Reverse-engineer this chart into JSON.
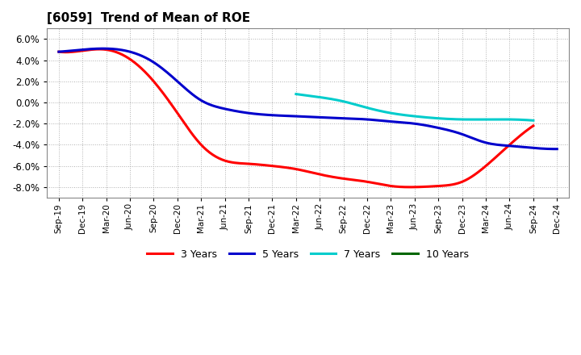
{
  "title": "[6059]  Trend of Mean of ROE",
  "background_color": "#ffffff",
  "plot_bg_color": "#ffffff",
  "grid_color": "#b0b0b0",
  "ylim": [
    -0.09,
    0.07
  ],
  "yticks": [
    -0.08,
    -0.06,
    -0.04,
    -0.02,
    0.0,
    0.02,
    0.04,
    0.06
  ],
  "series": {
    "3yr": {
      "color": "#ff0000",
      "label": "3 Years",
      "x_indices": [
        0,
        1,
        2,
        3,
        4,
        5,
        6,
        7,
        8,
        9,
        10,
        11,
        12,
        13,
        14,
        15,
        16,
        17,
        18,
        19,
        20
      ],
      "values": [
        0.048,
        0.049,
        0.05,
        0.041,
        0.02,
        -0.01,
        -0.04,
        -0.055,
        -0.058,
        -0.06,
        -0.063,
        -0.068,
        -0.072,
        -0.075,
        -0.079,
        -0.08,
        -0.079,
        -0.075,
        -0.06,
        -0.04,
        -0.022
      ]
    },
    "5yr": {
      "color": "#0000cc",
      "label": "5 Years",
      "x_indices": [
        0,
        1,
        2,
        3,
        4,
        5,
        6,
        7,
        8,
        9,
        10,
        11,
        12,
        13,
        14,
        15,
        16,
        17,
        18,
        19,
        20,
        21
      ],
      "values": [
        0.048,
        0.05,
        0.051,
        0.048,
        0.038,
        0.02,
        0.002,
        -0.006,
        -0.01,
        -0.012,
        -0.013,
        -0.014,
        -0.015,
        -0.016,
        -0.018,
        -0.02,
        -0.024,
        -0.03,
        -0.038,
        -0.041,
        -0.043,
        -0.044
      ]
    },
    "7yr": {
      "color": "#00cccc",
      "label": "7 Years",
      "x_indices": [
        10,
        11,
        12,
        13,
        14,
        15,
        16,
        17,
        18,
        19,
        20
      ],
      "values": [
        0.008,
        0.005,
        0.001,
        -0.005,
        -0.01,
        -0.013,
        -0.015,
        -0.016,
        -0.016,
        -0.016,
        -0.017
      ]
    },
    "10yr": {
      "color": "#006600",
      "label": "10 Years",
      "x_indices": [],
      "values": []
    }
  },
  "xtick_labels": [
    "Sep-19",
    "Dec-19",
    "Mar-20",
    "Jun-20",
    "Sep-20",
    "Dec-20",
    "Mar-21",
    "Jun-21",
    "Sep-21",
    "Dec-21",
    "Mar-22",
    "Jun-22",
    "Sep-22",
    "Dec-22",
    "Mar-23",
    "Jun-23",
    "Sep-23",
    "Dec-23",
    "Mar-24",
    "Jun-24",
    "Sep-24",
    "Dec-24"
  ],
  "linewidth": 2.2
}
